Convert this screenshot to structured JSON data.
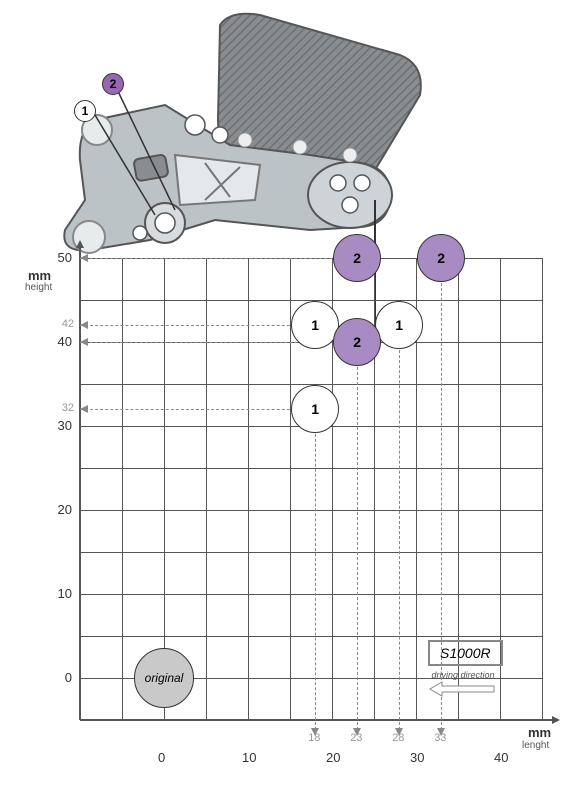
{
  "rearset_image": {
    "callout_1": "1",
    "callout_2": "2"
  },
  "chart": {
    "type": "scatter",
    "y_axis_label": "mm",
    "y_axis_sublabel": "height",
    "x_axis_label": "mm",
    "x_axis_sublabel": "lenght",
    "x_ticks": [
      0,
      10,
      20,
      30,
      40
    ],
    "y_ticks": [
      0,
      10,
      20,
      30,
      40,
      50
    ],
    "x_minor_ticks": {
      "18": 18,
      "23": 23,
      "28": 28,
      "33": 33
    },
    "y_minor_ticks": {
      "32": 32,
      "42": 42
    },
    "grid_origin_x": 80,
    "grid_origin_y": 450,
    "grid_cell_w": 42,
    "grid_cell_h": 42,
    "grid_cols": 11,
    "grid_rows": 11,
    "x_start_units": -10,
    "y_start_units": -5,
    "circles": [
      {
        "label": "original",
        "x_mm": 0,
        "y_mm": 0,
        "r": 30,
        "cls": "original"
      },
      {
        "label": "1",
        "x_mm": 18,
        "y_mm": 32,
        "r": 24,
        "cls": "white"
      },
      {
        "label": "1",
        "x_mm": 18,
        "y_mm": 42,
        "r": 24,
        "cls": "white"
      },
      {
        "label": "1",
        "x_mm": 28,
        "y_mm": 42,
        "r": 24,
        "cls": "white"
      },
      {
        "label": "2",
        "x_mm": 23,
        "y_mm": 40,
        "r": 24,
        "cls": "purple"
      },
      {
        "label": "2",
        "x_mm": 23,
        "y_mm": 50,
        "r": 24,
        "cls": "purple"
      },
      {
        "label": "2",
        "x_mm": 33,
        "y_mm": 50,
        "r": 24,
        "cls": "purple"
      }
    ],
    "model_label": "S1000R",
    "direction_label": "driving direction",
    "colors": {
      "purple": "#a88bc3",
      "grey": "#c9c9c9",
      "grid": "#555555",
      "bg": "#ffffff"
    }
  }
}
